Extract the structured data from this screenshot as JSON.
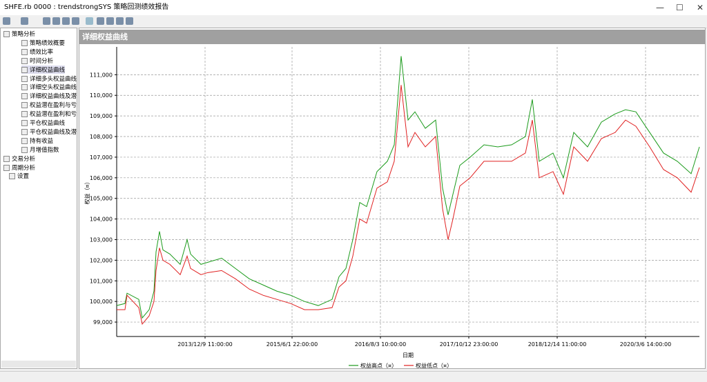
{
  "window": {
    "title": "SHFE.rb 0000 : trendstrongSYS 策略回测绩效报告"
  },
  "tree": [
    {
      "label": "策略分析",
      "children": [
        "策略绩效概要",
        "绩效比率",
        "时间分析",
        "详细权益曲线",
        "详细多头权益曲线",
        "详细空头权益曲线",
        "详细权益曲线及潜在",
        "权益潜在盈利与亏损",
        "权益潜在盈利和亏损",
        "平仓权益曲线",
        "平仓权益曲线及潜在",
        "持有收益",
        "月增值指数"
      ]
    },
    {
      "label": "交易分析",
      "children": []
    },
    {
      "label": "周期分析",
      "children": []
    },
    {
      "label": "设置",
      "children": []
    }
  ],
  "panel": {
    "title": "详细权益曲线"
  },
  "chart_data": {
    "type": "line",
    "x_label": "日期",
    "y_label": "权益（¤）",
    "grid": true,
    "legend": "bottom",
    "xlim": [
      0,
      844
    ],
    "xticks": [
      {
        "value": 128,
        "label": "2013/12/9 11:00:00"
      },
      {
        "value": 254,
        "label": "2015/6/1 22:00:00"
      },
      {
        "value": 382,
        "label": "2016/8/3 10:00:00"
      },
      {
        "value": 510,
        "label": "2017/10/12 23:00:00"
      },
      {
        "value": 638,
        "label": "2018/12/14 11:00:00"
      },
      {
        "value": 766,
        "label": "2020/3/6 14:00:00"
      }
    ],
    "ylim": [
      98300,
      112350
    ],
    "yticks": [
      {
        "value": 99000,
        "label": "99,000"
      },
      {
        "value": 100000,
        "label": "100,000"
      },
      {
        "value": 101000,
        "label": "101,000"
      },
      {
        "value": 102000,
        "label": "102,000"
      },
      {
        "value": 103000,
        "label": "103,000"
      },
      {
        "value": 104000,
        "label": "104,000"
      },
      {
        "value": 105000,
        "label": "105,000"
      },
      {
        "value": 106000,
        "label": "106,000"
      },
      {
        "value": 107000,
        "label": "107,000"
      },
      {
        "value": 108000,
        "label": "108,000"
      },
      {
        "value": 109000,
        "label": "109,000"
      },
      {
        "value": 110000,
        "label": "110,000"
      },
      {
        "value": 111000,
        "label": "111,000"
      }
    ],
    "x": [
      0,
      12,
      15,
      32,
      37,
      47,
      54,
      57,
      62,
      67,
      77,
      92,
      102,
      107,
      122,
      132,
      152,
      172,
      192,
      212,
      232,
      252,
      272,
      292,
      312,
      322,
      332,
      342,
      352,
      362,
      377,
      392,
      402,
      412,
      422,
      432,
      447,
      462,
      472,
      480,
      487,
      497,
      512,
      532,
      552,
      572,
      592,
      602,
      612,
      632,
      647,
      662,
      682,
      702,
      722,
      737,
      752,
      772,
      792,
      812,
      832,
      844
    ],
    "series": [
      {
        "name": "权益高点（¤）",
        "color": "#1a9a1a",
        "values": [
          99800,
          99900,
          100400,
          100100,
          99200,
          99600,
          100500,
          102400,
          103400,
          102500,
          102300,
          101800,
          103000,
          102300,
          101800,
          101900,
          102100,
          101600,
          101100,
          100800,
          100500,
          100300,
          100000,
          99800,
          100100,
          101200,
          101600,
          103000,
          104800,
          104600,
          106300,
          106800,
          107600,
          111900,
          108800,
          109200,
          108400,
          108800,
          105500,
          104200,
          105200,
          106600,
          107000,
          107600,
          107500,
          107600,
          108000,
          109800,
          106800,
          107200,
          106000,
          108200,
          107500,
          108700,
          109100,
          109300,
          109200,
          108200,
          107200,
          106800,
          106200,
          107500
        ]
      },
      {
        "name": "权益低点（¤）",
        "color": "#e02020",
        "values": [
          99600,
          99600,
          100300,
          99700,
          98900,
          99300,
          100000,
          101500,
          102600,
          102000,
          101800,
          101300,
          102200,
          101600,
          101300,
          101400,
          101500,
          101100,
          100600,
          100300,
          100100,
          99900,
          99600,
          99600,
          99700,
          100700,
          101000,
          102200,
          104000,
          103800,
          105500,
          105800,
          106800,
          110500,
          107500,
          108200,
          107500,
          108000,
          104500,
          103000,
          104000,
          105600,
          106000,
          106800,
          106800,
          106800,
          107200,
          108800,
          106000,
          106300,
          105200,
          107500,
          106800,
          107900,
          108200,
          108800,
          108500,
          107500,
          106400,
          106000,
          105300,
          106500
        ]
      }
    ]
  }
}
